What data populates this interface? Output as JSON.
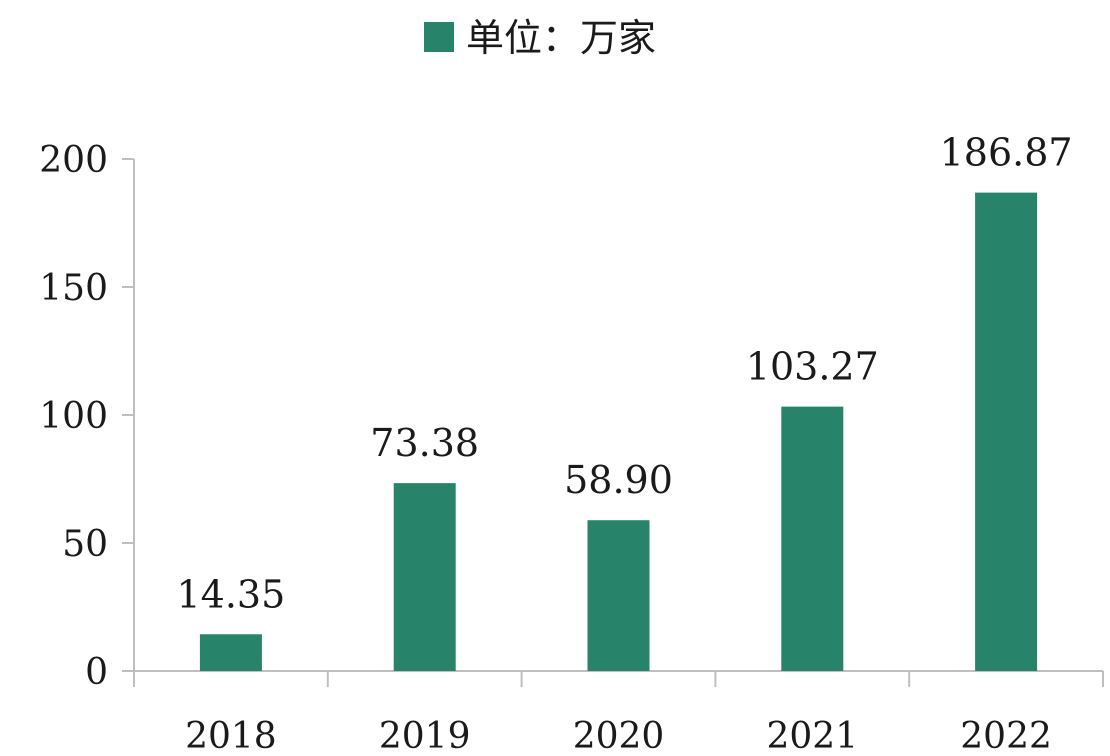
{
  "chart_data": {
    "type": "bar",
    "categories": [
      "2018",
      "2019",
      "2020",
      "2021",
      "2022"
    ],
    "series": [
      {
        "name": "单位：万家",
        "values": [
          14.35,
          73.38,
          58.9,
          103.27,
          186.87
        ],
        "labels": [
          "14.35",
          "73.38",
          "58.90",
          "103.27",
          "186.87"
        ]
      }
    ],
    "title": "",
    "xlabel": "",
    "ylabel": "",
    "ylim": [
      0,
      200
    ],
    "yticks": [
      0,
      50,
      100,
      150,
      200
    ],
    "grid": false,
    "legend_placement": "top-center",
    "colors": {
      "bar": "#27836A",
      "axis": "#bfbfbf",
      "text": "#1a1a1a"
    }
  }
}
